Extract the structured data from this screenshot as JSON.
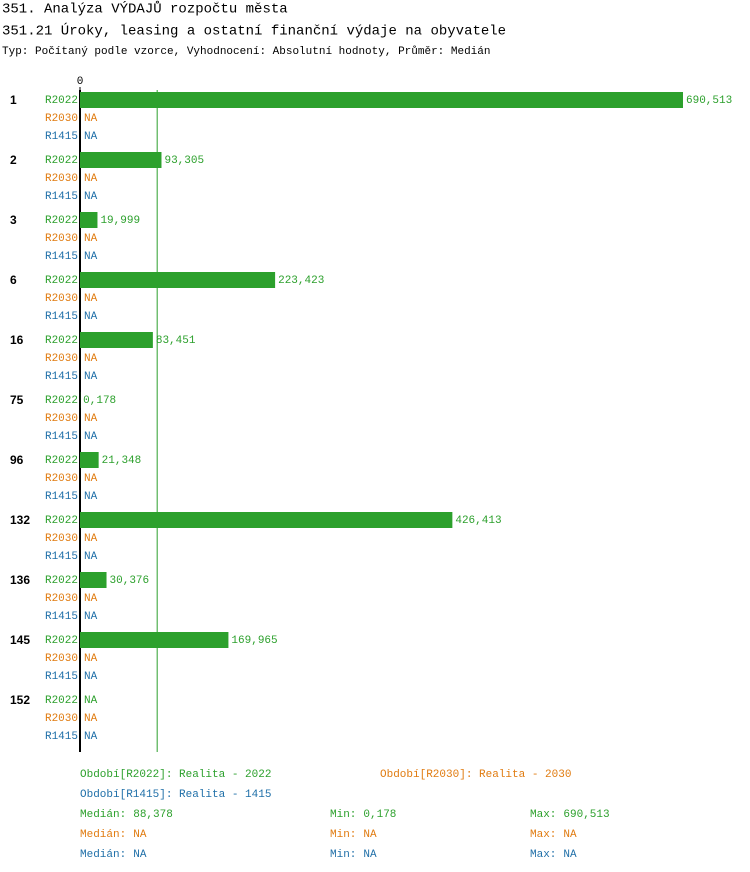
{
  "title": "351. Analýza VÝDAJŮ rozpočtu města",
  "chart_data": {
    "type": "bar",
    "orientation": "horizontal",
    "title": "351.21 Úroky, leasing a ostatní finanční výdaje na obyvatele",
    "subtitle": "Typ: Počítaný podle vzorce, Vyhodnocení: Absolutní hodnoty, Průměr: Medián",
    "categories": [
      "1",
      "2",
      "3",
      "6",
      "16",
      "75",
      "96",
      "132",
      "136",
      "145",
      "152"
    ],
    "xlim": [
      0,
      690.513
    ],
    "xticks": [
      0
    ],
    "stat_names": [
      "Medián:",
      "Min:",
      "Max:"
    ],
    "series": [
      {
        "name": "R2022",
        "color": "#2ca02c",
        "period": "Období[R2022]: Realita - 2022",
        "values": [
          690.513,
          93.305,
          19.999,
          223.423,
          83.451,
          0.178,
          21.348,
          426.413,
          30.376,
          169.965,
          null
        ],
        "value_labels": [
          "690,513",
          "93,305",
          "19,999",
          "223,423",
          "83,451",
          "0,178",
          "21,348",
          "426,413",
          "30,376",
          "169,965",
          "NA"
        ],
        "stats": [
          {
            "value": 88.378,
            "label": "88,378"
          },
          {
            "value": 0.178,
            "label": "0,178"
          },
          {
            "value": 690.513,
            "label": "690,513"
          }
        ]
      },
      {
        "name": "R2030",
        "color": "#e07b10",
        "period": "Období[R2030]: Realita - 2030",
        "values": [
          null,
          null,
          null,
          null,
          null,
          null,
          null,
          null,
          null,
          null,
          null
        ],
        "value_labels": [
          "NA",
          "NA",
          "NA",
          "NA",
          "NA",
          "NA",
          "NA",
          "NA",
          "NA",
          "NA",
          "NA"
        ],
        "stats": [
          {
            "value": null,
            "label": "NA"
          },
          {
            "value": null,
            "label": "NA"
          },
          {
            "value": null,
            "label": "NA"
          }
        ]
      },
      {
        "name": "R1415",
        "color": "#1f6fa8",
        "period": "Období[R1415]: Realita - 1415",
        "values": [
          null,
          null,
          null,
          null,
          null,
          null,
          null,
          null,
          null,
          null,
          null
        ],
        "value_labels": [
          "NA",
          "NA",
          "NA",
          "NA",
          "NA",
          "NA",
          "NA",
          "NA",
          "NA",
          "NA",
          "NA"
        ],
        "stats": [
          {
            "value": null,
            "label": "NA"
          },
          {
            "value": null,
            "label": "NA"
          },
          {
            "value": null,
            "label": "NA"
          }
        ]
      }
    ]
  }
}
